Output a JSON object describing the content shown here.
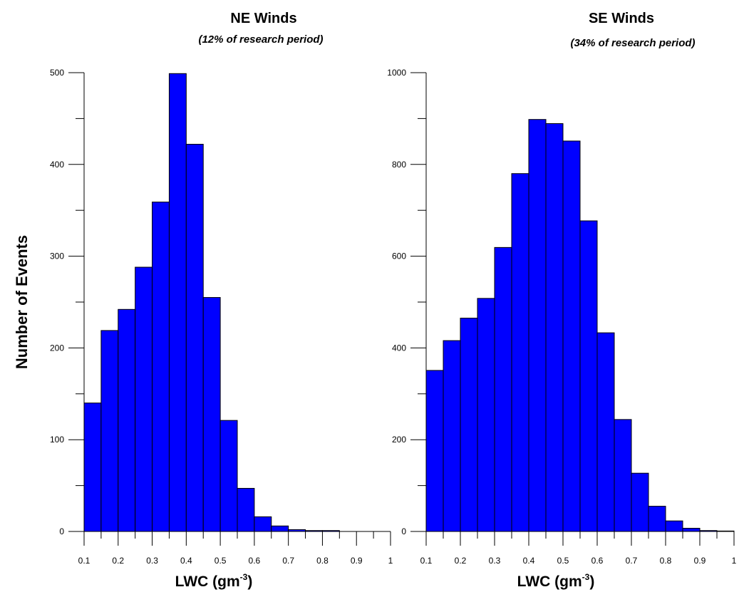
{
  "y_axis_label": "Number of Events",
  "chart_data": [
    {
      "type": "bar",
      "title": "NE Winds",
      "subtitle": "(12% of research period)",
      "xlabel": "LWC (gm",
      "xlabel_sup": "-3",
      "xlabel_close": ")",
      "ylabel": "Number of Events",
      "bin_width": 0.05,
      "x_tick_labels": [
        "0.1",
        "0.2",
        "0.3",
        "0.4",
        "0.5",
        "0.6",
        "0.7",
        "0.8",
        "0.9",
        "1"
      ],
      "y_tick_labels": [
        "0",
        "100",
        "200",
        "300",
        "400",
        "500"
      ],
      "xlim": [
        0.1,
        1.0
      ],
      "ylim": [
        0,
        500
      ],
      "bins": [
        0.1,
        0.15,
        0.2,
        0.25,
        0.3,
        0.35,
        0.4,
        0.45,
        0.5,
        0.55,
        0.6,
        0.65,
        0.7,
        0.75,
        0.8,
        0.85,
        0.9,
        0.95
      ],
      "values": [
        140,
        219,
        242,
        288,
        359,
        499,
        422,
        255,
        121,
        47,
        16,
        6,
        2,
        1,
        1,
        0,
        0,
        0
      ],
      "bar_color": "#0000ff",
      "grid": false
    },
    {
      "type": "bar",
      "title": "SE Winds",
      "subtitle": "(34% of research period)",
      "xlabel": "LWC (gm",
      "xlabel_sup": "-3",
      "xlabel_close": ")",
      "ylabel": "",
      "bin_width": 0.05,
      "x_tick_labels": [
        "0.1",
        "0.2",
        "0.3",
        "0.4",
        "0.5",
        "0.6",
        "0.7",
        "0.8",
        "0.9",
        "1"
      ],
      "y_tick_labels": [
        "0",
        "200",
        "400",
        "600",
        "800",
        "1000"
      ],
      "xlim": [
        0.1,
        1.0
      ],
      "ylim": [
        0,
        1000
      ],
      "bins": [
        0.1,
        0.15,
        0.2,
        0.25,
        0.3,
        0.35,
        0.4,
        0.45,
        0.5,
        0.55,
        0.6,
        0.65,
        0.7,
        0.75,
        0.8,
        0.85,
        0.9,
        0.95
      ],
      "values": [
        351,
        416,
        465,
        508,
        619,
        780,
        898,
        889,
        851,
        677,
        433,
        244,
        127,
        55,
        23,
        7,
        2,
        1
      ],
      "bar_color": "#0000ff",
      "grid": false
    }
  ]
}
